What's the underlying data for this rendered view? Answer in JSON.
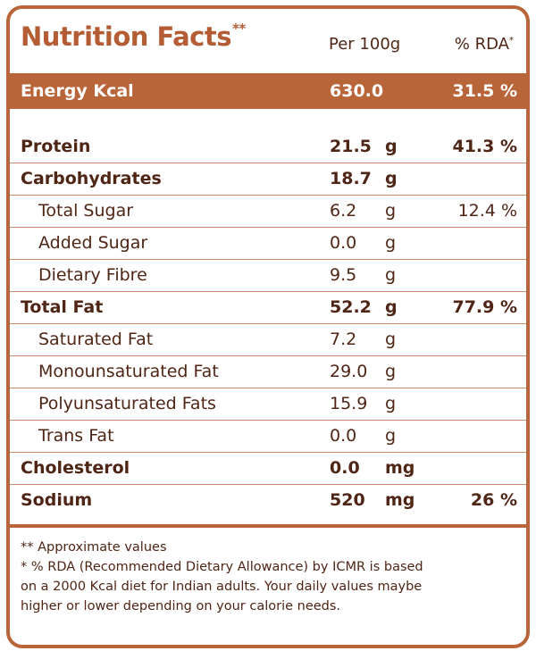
{
  "header": {
    "title": "Nutrition Facts",
    "title_mark": "**",
    "per_label": "Per 100g",
    "rda_label": "% RDA",
    "rda_mark": "*"
  },
  "energy": {
    "name": "Energy Kcal",
    "value": "630.0",
    "rda": "31.5 %"
  },
  "rows": [
    {
      "name": "Protein",
      "value": "21.5",
      "unit": "g",
      "rda": "41.3 %"
    },
    {
      "name": "Carbohydrates",
      "value": "18.7",
      "unit": "g",
      "rda": ""
    },
    {
      "name": "Total Sugar",
      "value": "6.2",
      "unit": "g",
      "rda": "12.4 %"
    },
    {
      "name": "Added Sugar",
      "value": "0.0",
      "unit": "g",
      "rda": ""
    },
    {
      "name": "Dietary Fibre",
      "value": "9.5",
      "unit": "g",
      "rda": ""
    },
    {
      "name": "Total Fat",
      "value": "52.2",
      "unit": "g",
      "rda": "77.9 %"
    },
    {
      "name": "Saturated Fat",
      "value": "7.2",
      "unit": "g",
      "rda": ""
    },
    {
      "name": "Monounsaturated Fat",
      "value": "29.0",
      "unit": "g",
      "rda": ""
    },
    {
      "name": "Polyunsaturated Fats",
      "value": "15.9",
      "unit": "g",
      "rda": ""
    },
    {
      "name": "Trans Fat",
      "value": "0.0",
      "unit": "g",
      "rda": ""
    },
    {
      "name": "Cholesterol",
      "value": "0.0",
      "unit": "mg",
      "rda": ""
    },
    {
      "name": "Sodium",
      "value": "520",
      "unit": "mg",
      "rda": "26 %"
    }
  ],
  "footnotes": {
    "approx": "** Approximate values",
    "rda_line1": "*  % RDA (Recommended Dietary Allowance) by ICMR is based",
    "rda_line2": "on a 2000 Kcal diet for Indian adults. Your daily values maybe",
    "rda_line3": "higher or lower depending on your calorie needs."
  },
  "colors": {
    "accent": "#b9653a",
    "text": "#4f2515"
  }
}
